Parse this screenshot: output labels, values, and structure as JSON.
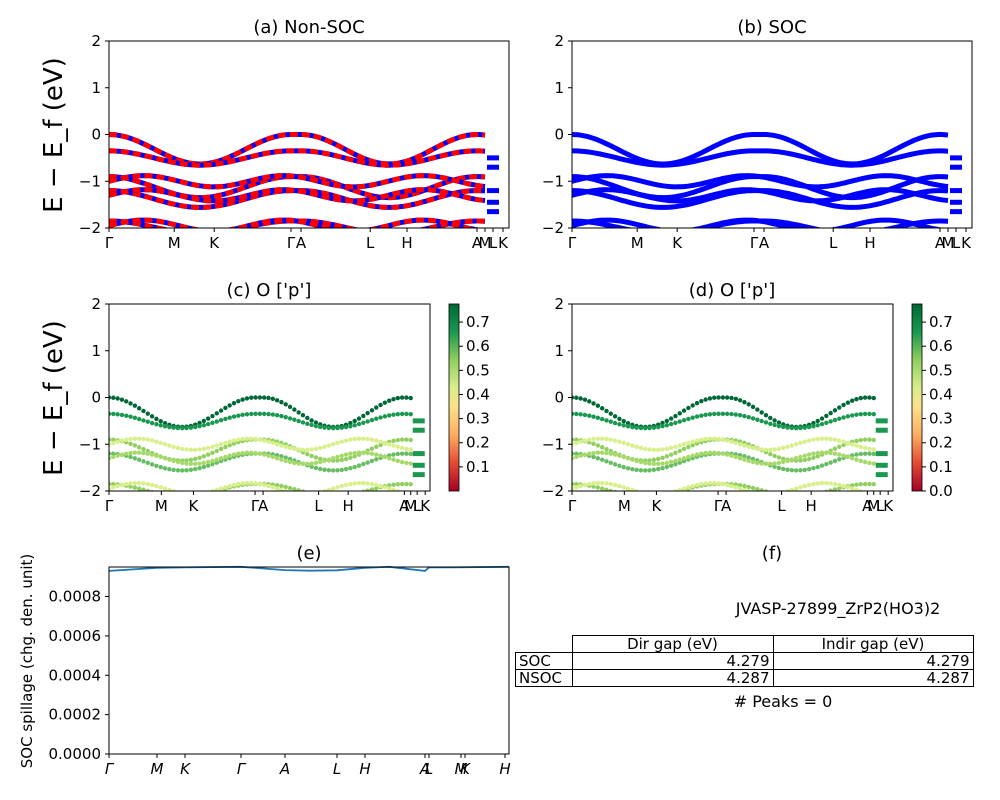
{
  "chart_data": [
    {
      "type": "line",
      "panel": "a",
      "title": "(a) Non-SOC",
      "ylabel": "E − E_f (eV)",
      "ylim": [
        -2,
        2
      ],
      "yticks": [
        "2",
        "1",
        "0",
        "−1",
        "−2"
      ],
      "kpath": [
        "Γ",
        "M",
        "K",
        "Γ",
        "A",
        "L",
        "H",
        "A",
        "M",
        "L",
        "K"
      ],
      "colors": [
        "#0000ff",
        "#ff0000"
      ],
      "bands": [
        0.0,
        -0.35,
        -0.9,
        -1.0,
        -1.2,
        -1.3,
        -1.85,
        -1.95
      ]
    },
    {
      "type": "line",
      "panel": "b",
      "title": "(b) SOC",
      "ylim": [
        -2,
        2
      ],
      "yticks": [
        "2",
        "1",
        "0",
        "−1",
        "−2"
      ],
      "kpath": [
        "Γ",
        "M",
        "K",
        "Γ",
        "A",
        "L",
        "H",
        "A",
        "M",
        "L",
        "K"
      ],
      "colors": [
        "#0000ff"
      ],
      "bands": [
        0.0,
        -0.35,
        -0.9,
        -1.0,
        -1.2,
        -1.3,
        -1.85,
        -1.95
      ]
    },
    {
      "type": "scatter",
      "panel": "c",
      "title": "(c)  O ['p']",
      "ylabel": "E − E_f (eV)",
      "ylim": [
        -2,
        2
      ],
      "yticks": [
        "2",
        "1",
        "0",
        "−1",
        "−2"
      ],
      "kpath": [
        "Γ",
        "M",
        "K",
        "Γ",
        "A",
        "L",
        "H",
        "A",
        "M",
        "L",
        "K"
      ],
      "colorbar": [
        "0.7",
        "0.6",
        "0.5",
        "0.4",
        "0.3",
        "0.2",
        "0.1"
      ]
    },
    {
      "type": "scatter",
      "panel": "d",
      "title": "(d) O ['p']",
      "ylim": [
        -2,
        2
      ],
      "yticks": [
        "2",
        "1",
        "0",
        "−1",
        "−2"
      ],
      "kpath": [
        "Γ",
        "M",
        "K",
        "Γ",
        "A",
        "L",
        "H",
        "A",
        "M",
        "L",
        "K"
      ],
      "colorbar": [
        "0.7",
        "0.6",
        "0.5",
        "0.4",
        "0.3",
        "0.2",
        "0.1",
        "0.0"
      ]
    },
    {
      "type": "line",
      "panel": "e",
      "title": "(e)",
      "ylabel": "SOC spillage (chg. den. unit)",
      "ylim": [
        0,
        0.00095
      ],
      "yticks": [
        "0.0008",
        "0.0006",
        "0.0004",
        "0.0002",
        "0.0000"
      ],
      "kpath": [
        "Γ",
        "M",
        "K",
        "Γ",
        "A",
        "L",
        "H",
        "A",
        "L",
        "M",
        "K",
        "H"
      ],
      "x": [
        0,
        0.12,
        0.19,
        0.33,
        0.44,
        0.5,
        0.57,
        0.64,
        0.7,
        0.79,
        0.8,
        0.86,
        1.0
      ],
      "values": [
        0.00093,
        0.000946,
        0.000948,
        0.000951,
        0.000934,
        0.000931,
        0.000933,
        0.000946,
        0.000951,
        0.00093,
        0.000948,
        0.000948,
        0.000951
      ]
    },
    {
      "type": "table",
      "panel": "f",
      "title": "(f)",
      "material": "JVASP-27899_ZrP2(HO3)2",
      "columns": [
        "Dir gap (eV)",
        "Indir gap (eV)"
      ],
      "rows": [
        {
          "label": "SOC",
          "dir": "4.279",
          "indir": "4.279"
        },
        {
          "label": "NSOC",
          "dir": "4.287",
          "indir": "4.287"
        }
      ],
      "peaks": "# Peaks = 0"
    }
  ]
}
